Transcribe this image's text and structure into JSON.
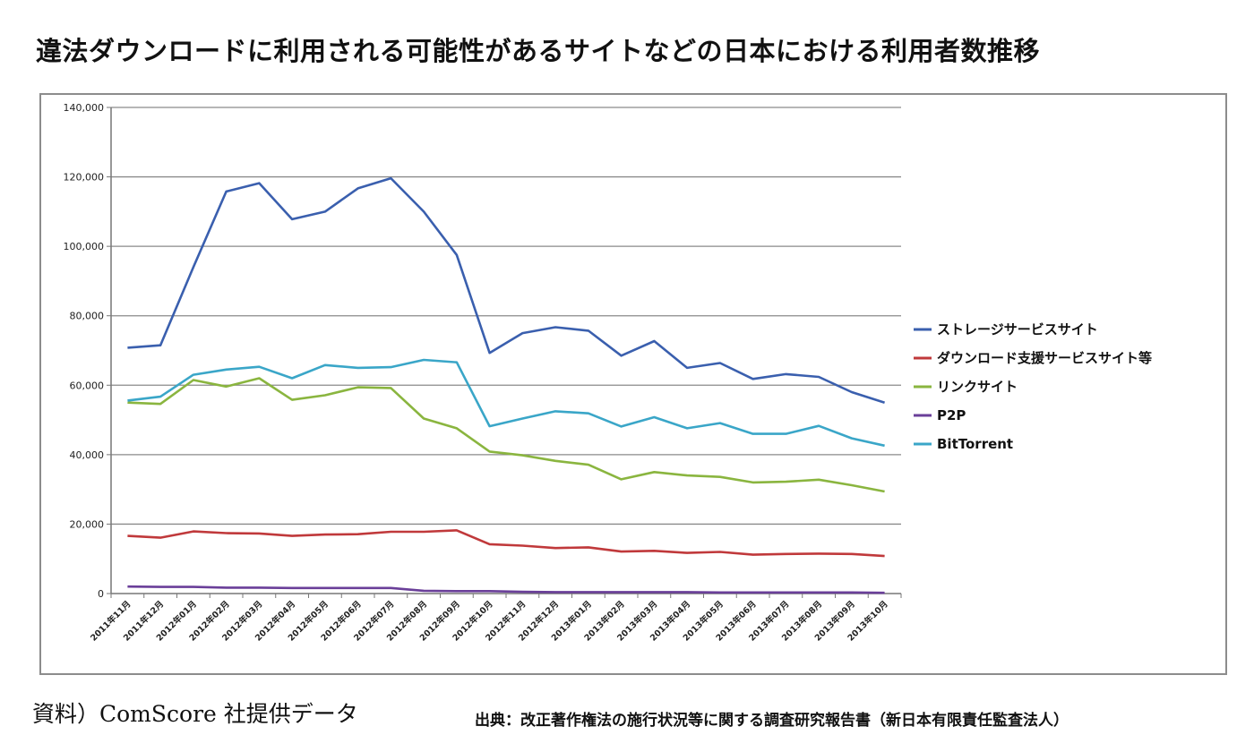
{
  "title": "違法ダウンロードに利用される可能性があるサイトなどの日本における利用者数推移",
  "source_left": "資料）ComScore 社提供データ",
  "source_right": "出典：改正著作権法の施行状況等に関する調査研究報告書（新日本有限責任監査法人）",
  "chart_data": {
    "type": "line",
    "title": "違法ダウンロードに利用される可能性があるサイトなどの日本における利用者数推移",
    "xlabel": "",
    "ylabel": "",
    "ylim": [
      0,
      140000
    ],
    "yticks": [
      0,
      20000,
      40000,
      60000,
      80000,
      100000,
      120000,
      140000
    ],
    "ytick_labels": [
      "0",
      "20,000",
      "40,000",
      "60,000",
      "80,000",
      "100,000",
      "120,000",
      "140,000"
    ],
    "grid": "horizontal",
    "legend_position": "right",
    "categories": [
      "2011年11月",
      "2011年12月",
      "2012年01月",
      "2012年02月",
      "2012年03月",
      "2012年04月",
      "2012年05月",
      "2012年06月",
      "2012年07月",
      "2012年08月",
      "2012年09月",
      "2012年10月",
      "2012年11月",
      "2012年12月",
      "2013年01月",
      "2013年02月",
      "2013年03月",
      "2013年04月",
      "2013年05月",
      "2013年06月",
      "2013年07月",
      "2013年08月",
      "2013年09月",
      "2013年10月"
    ],
    "series": [
      {
        "name": "ストレージサービスサイト",
        "color": "#3a5fae",
        "values": [
          70800,
          71500,
          94000,
          115800,
          118200,
          107800,
          110000,
          116700,
          119600,
          110000,
          97500,
          69300,
          75000,
          76700,
          75700,
          68500,
          72700,
          65000,
          66400,
          61800,
          63200,
          62400,
          58000,
          55000
        ]
      },
      {
        "name": "ダウンロード支援サービスサイト等",
        "color": "#c0393b",
        "values": [
          16600,
          16100,
          17900,
          17400,
          17300,
          16600,
          17000,
          17100,
          17800,
          17800,
          18200,
          14200,
          13800,
          13100,
          13300,
          12100,
          12300,
          11700,
          12000,
          11200,
          11400,
          11500,
          11400,
          10800
        ]
      },
      {
        "name": "リンクサイト",
        "color": "#8ab53f",
        "values": [
          55000,
          54600,
          61500,
          59600,
          62000,
          55800,
          57100,
          59400,
          59200,
          50400,
          47600,
          40900,
          39800,
          38200,
          37100,
          32900,
          35000,
          34000,
          33600,
          32000,
          32200,
          32800,
          31200,
          29400
        ]
      },
      {
        "name": "P2P",
        "color": "#6a3f99",
        "values": [
          2000,
          1900,
          1900,
          1700,
          1700,
          1600,
          1600,
          1600,
          1600,
          800,
          700,
          700,
          500,
          400,
          400,
          400,
          400,
          400,
          300,
          300,
          300,
          300,
          300,
          200
        ]
      },
      {
        "name": "BitTorrent",
        "color": "#3aa6c8",
        "values": [
          55600,
          56700,
          63000,
          64500,
          65300,
          62000,
          65800,
          65000,
          65200,
          67300,
          66600,
          48200,
          50400,
          52500,
          51900,
          48100,
          50800,
          47600,
          49100,
          46000,
          46000,
          48300,
          44700,
          42600
        ]
      }
    ]
  }
}
